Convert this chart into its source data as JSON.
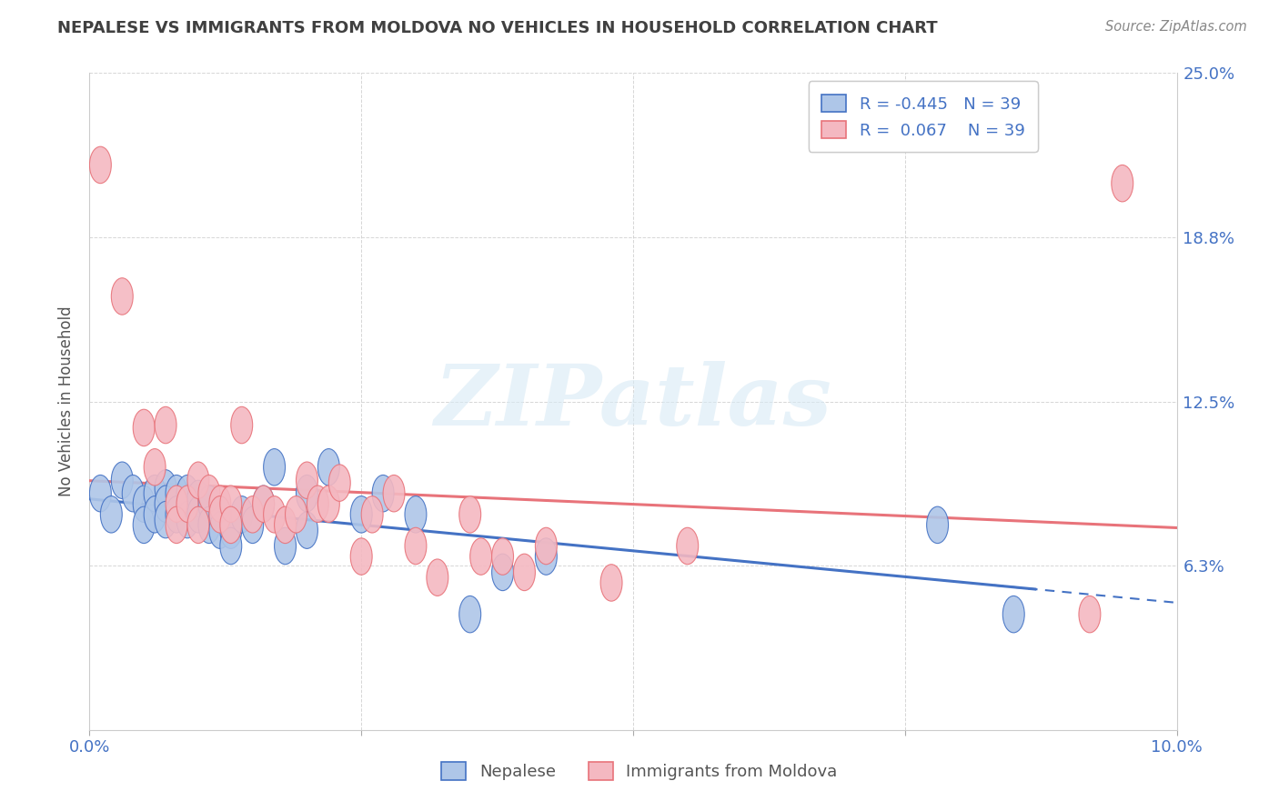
{
  "title": "NEPALESE VS IMMIGRANTS FROM MOLDOVA NO VEHICLES IN HOUSEHOLD CORRELATION CHART",
  "source": "Source: ZipAtlas.com",
  "ylabel_label": "No Vehicles in Household",
  "xlim": [
    0.0,
    0.1
  ],
  "ylim": [
    0.0,
    0.25
  ],
  "r_nepalese": -0.445,
  "r_moldova": 0.067,
  "n_nepalese": 39,
  "n_moldova": 39,
  "color_nepalese": "#aec6e8",
  "color_moldova": "#f4b8c1",
  "line_color_nepalese": "#4472c4",
  "line_color_moldova": "#e8737a",
  "watermark_text": "ZIPatlas",
  "nepalese_x": [
    0.001,
    0.002,
    0.003,
    0.004,
    0.005,
    0.005,
    0.006,
    0.006,
    0.007,
    0.007,
    0.007,
    0.008,
    0.008,
    0.009,
    0.009,
    0.01,
    0.01,
    0.011,
    0.011,
    0.012,
    0.012,
    0.013,
    0.013,
    0.014,
    0.015,
    0.016,
    0.017,
    0.018,
    0.02,
    0.02,
    0.022,
    0.025,
    0.027,
    0.03,
    0.035,
    0.038,
    0.042,
    0.078,
    0.085
  ],
  "nepalese_y": [
    0.09,
    0.082,
    0.095,
    0.09,
    0.086,
    0.078,
    0.09,
    0.082,
    0.092,
    0.086,
    0.08,
    0.09,
    0.082,
    0.09,
    0.08,
    0.088,
    0.082,
    0.086,
    0.078,
    0.082,
    0.076,
    0.076,
    0.07,
    0.082,
    0.078,
    0.086,
    0.1,
    0.07,
    0.09,
    0.076,
    0.1,
    0.082,
    0.09,
    0.082,
    0.044,
    0.06,
    0.066,
    0.078,
    0.044
  ],
  "moldova_x": [
    0.001,
    0.003,
    0.005,
    0.006,
    0.007,
    0.008,
    0.008,
    0.009,
    0.01,
    0.01,
    0.011,
    0.012,
    0.012,
    0.013,
    0.013,
    0.014,
    0.015,
    0.016,
    0.017,
    0.018,
    0.019,
    0.02,
    0.021,
    0.022,
    0.023,
    0.025,
    0.026,
    0.028,
    0.03,
    0.032,
    0.035,
    0.036,
    0.038,
    0.04,
    0.042,
    0.048,
    0.055,
    0.092,
    0.095
  ],
  "moldova_y": [
    0.215,
    0.165,
    0.115,
    0.1,
    0.116,
    0.086,
    0.078,
    0.086,
    0.095,
    0.078,
    0.09,
    0.086,
    0.082,
    0.086,
    0.078,
    0.116,
    0.082,
    0.086,
    0.082,
    0.078,
    0.082,
    0.095,
    0.086,
    0.086,
    0.094,
    0.066,
    0.082,
    0.09,
    0.07,
    0.058,
    0.082,
    0.066,
    0.066,
    0.06,
    0.07,
    0.056,
    0.07,
    0.044,
    0.208
  ],
  "bg_color": "#ffffff",
  "grid_color": "#cccccc",
  "title_color": "#404040",
  "tick_color": "#4472c4",
  "ylabel_color": "#555555"
}
